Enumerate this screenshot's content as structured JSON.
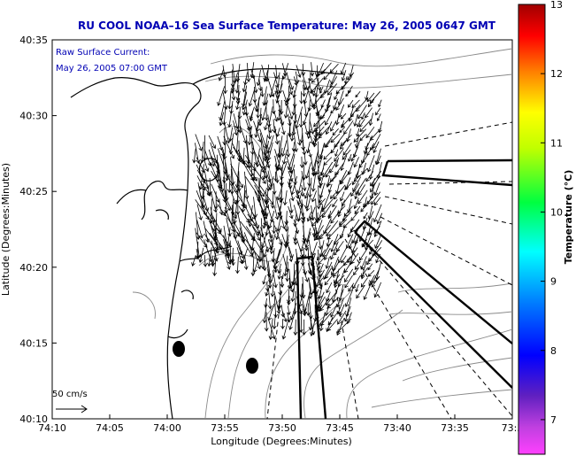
{
  "chart_data": {
    "type": "vector-field-map",
    "title": "RU COOL  NOAA–16  Sea Surface Temperature:  May 26, 2005 0647 GMT",
    "annotation_lines": [
      "Raw Surface Current:",
      "May 26, 2005 07:00 GMT"
    ],
    "xlabel": "Longitude (Degrees:Minutes)",
    "ylabel": "Latitude (Degrees:Minutes)",
    "x_ticks": [
      "74:10",
      "74:05",
      "74:00",
      "73:55",
      "73:50",
      "73:45",
      "73:40",
      "73:35",
      "73:3"
    ],
    "y_ticks": [
      "40:35",
      "40:30",
      "40:25",
      "40:20",
      "40:15",
      "40:10"
    ],
    "xlim": [
      -74.1667,
      -73.5
    ],
    "ylim": [
      40.1667,
      40.5833
    ],
    "colorbar": {
      "label": "Temperature (°C)",
      "ticks": [
        "13",
        "12",
        "11",
        "10",
        "9",
        "8",
        "7"
      ],
      "range": [
        6.5,
        13
      ]
    },
    "scale_label": "50 cm/s",
    "grid": false,
    "colors": {
      "title": "#0000b4",
      "coast": "#000000",
      "contour": "#8a8a8a"
    }
  }
}
